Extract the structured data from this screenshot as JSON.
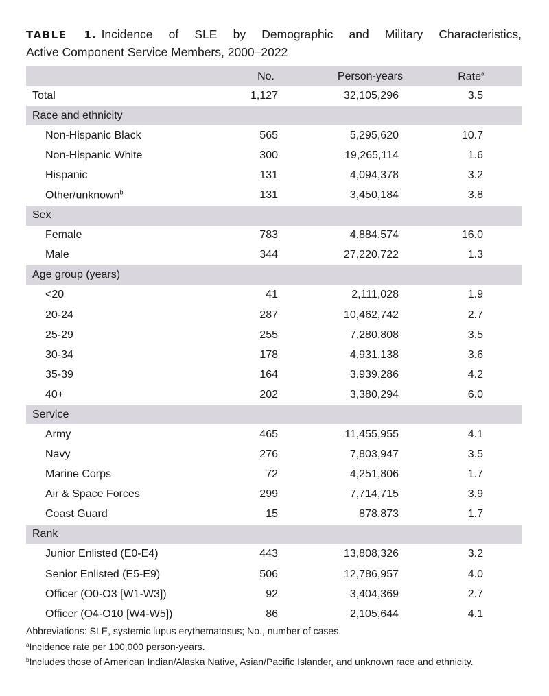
{
  "title": {
    "label": "TABLE 1.",
    "line1": "Incidence of SLE by Demographic and Military Characteristics,",
    "line2": "Active Component Service Members, 2000–2022"
  },
  "table": {
    "columns": [
      {
        "text": "No."
      },
      {
        "text": "Person-years"
      },
      {
        "text": "Rate",
        "note": "a"
      }
    ],
    "rows": [
      {
        "label": "Total",
        "cells": [
          "1,127",
          "32,105,296",
          "3.5"
        ]
      },
      {
        "section": "Race and ethnicity"
      },
      {
        "label": "Non-Hispanic Black",
        "cells": [
          "565",
          "5,295,620",
          "10.7"
        ]
      },
      {
        "label": "Non-Hispanic White",
        "cells": [
          "300",
          "19,265,114",
          "1.6"
        ]
      },
      {
        "label": "Hispanic",
        "cells": [
          "131",
          "4,094,378",
          "3.2"
        ]
      },
      {
        "label": "Other/unknown",
        "note": "b",
        "cells": [
          "131",
          "3,450,184",
          "3.8"
        ]
      },
      {
        "section": "Sex"
      },
      {
        "label": "Female",
        "cells": [
          "783",
          "4,884,574",
          "16.0"
        ]
      },
      {
        "label": "Male",
        "cells": [
          "344",
          "27,220,722",
          "1.3"
        ]
      },
      {
        "section": "Age group (years)"
      },
      {
        "label": "<20",
        "cells": [
          "41",
          "2,111,028",
          "1.9"
        ]
      },
      {
        "label": "20-24",
        "cells": [
          "287",
          "10,462,742",
          "2.7"
        ]
      },
      {
        "label": "25-29",
        "cells": [
          "255",
          "7,280,808",
          "3.5"
        ]
      },
      {
        "label": "30-34",
        "cells": [
          "178",
          "4,931,138",
          "3.6"
        ]
      },
      {
        "label": "35-39",
        "cells": [
          "164",
          "3,939,286",
          "4.2"
        ]
      },
      {
        "label": "40+",
        "cells": [
          "202",
          "3,380,294",
          "6.0"
        ]
      },
      {
        "section": "Service"
      },
      {
        "label": "Army",
        "cells": [
          "465",
          "11,455,955",
          "4.1"
        ]
      },
      {
        "label": "Navy",
        "cells": [
          "276",
          "7,803,947",
          "3.5"
        ]
      },
      {
        "label": "Marine Corps",
        "cells": [
          "72",
          "4,251,806",
          "1.7"
        ]
      },
      {
        "label": "Air & Space Forces",
        "cells": [
          "299",
          "7,714,715",
          "3.9"
        ]
      },
      {
        "label": "Coast Guard",
        "cells": [
          "15",
          "878,873",
          "1.7"
        ]
      },
      {
        "section": "Rank"
      },
      {
        "label": "Junior Enlisted (E0-E4)",
        "cells": [
          "443",
          "13,808,326",
          "3.2"
        ]
      },
      {
        "label": "Senior Enlisted (E5-E9)",
        "cells": [
          "506",
          "12,786,957",
          "4.0"
        ]
      },
      {
        "label": "Officer (O0-O3 [W1-W3])",
        "cells": [
          "92",
          "3,404,369",
          "2.7"
        ]
      },
      {
        "label": "Officer (O4-O10 [W4-W5])",
        "cells": [
          "86",
          "2,105,644",
          "4.1"
        ]
      }
    ]
  },
  "footnotes": [
    {
      "text": "Abbreviations: SLE, systemic lupus erythematosus; No., number of cases."
    },
    {
      "mark": "a",
      "text": "Incidence rate per 100,000 person-years."
    },
    {
      "mark": "b",
      "text": "Includes those of American Indian/Alaska Native, Asian/Pacific Islander, and unknown race and ethnicity."
    }
  ]
}
